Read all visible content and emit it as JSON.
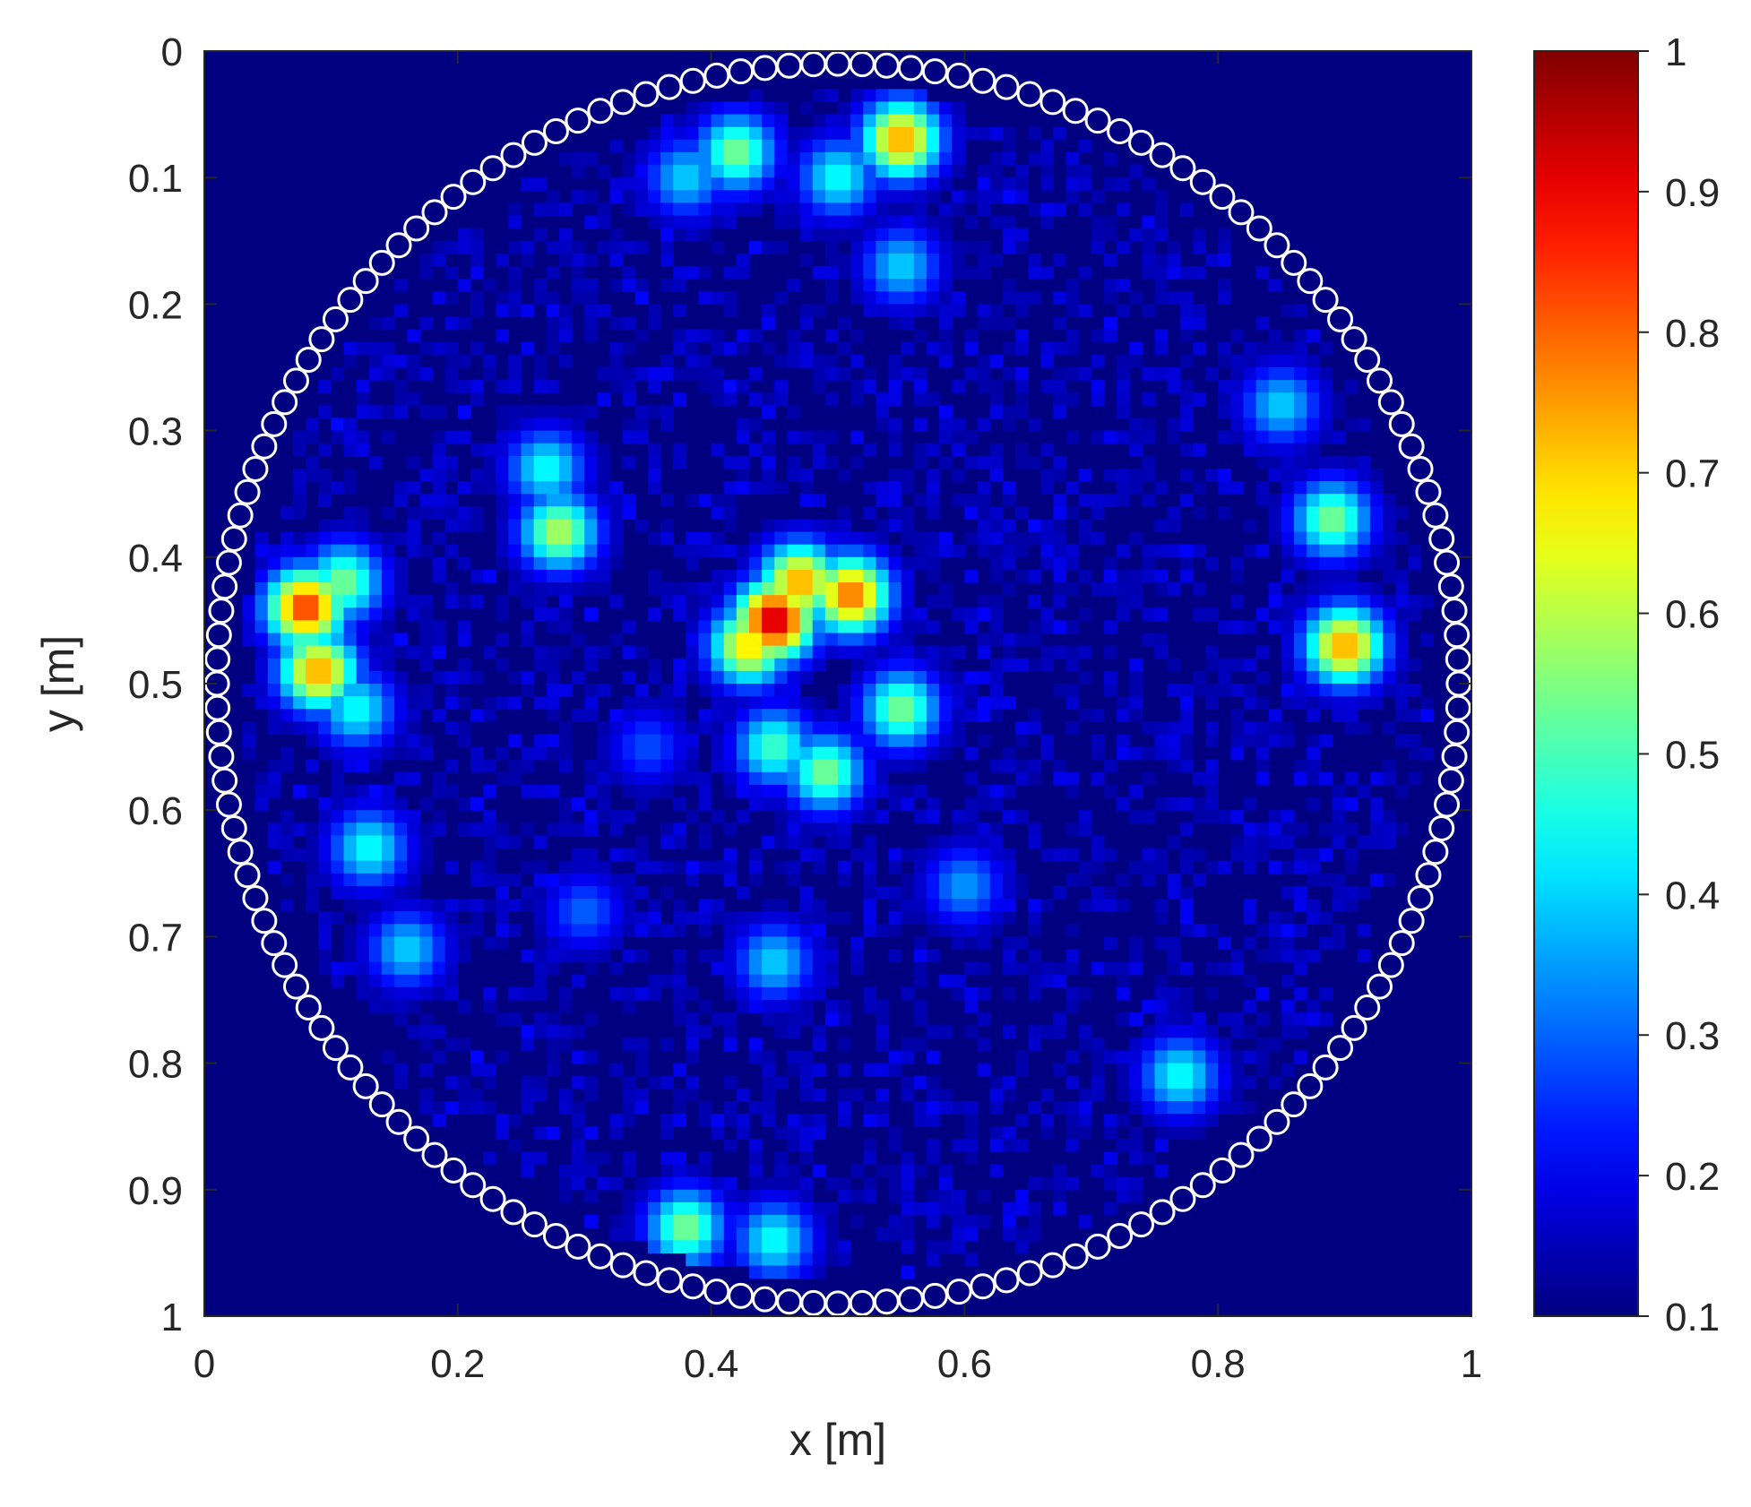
{
  "chart_data": {
    "type": "heatmap",
    "title": "",
    "xlabel": "x [m]",
    "ylabel": "y [m]",
    "xlim": [
      0,
      1
    ],
    "ylim": [
      0,
      1
    ],
    "y_direction": "reversed",
    "x_ticks": [
      "0",
      "0.2",
      "0.4",
      "0.6",
      "0.8",
      "1"
    ],
    "y_ticks": [
      "0",
      "0.1",
      "0.2",
      "0.3",
      "0.4",
      "0.5",
      "0.6",
      "0.7",
      "0.8",
      "0.9",
      "1"
    ],
    "colormap": "jet",
    "clim": [
      0.1,
      1
    ],
    "colorbar_ticks": [
      "0.1",
      "0.2",
      "0.3",
      "0.4",
      "0.5",
      "0.6",
      "0.7",
      "0.8",
      "0.9",
      "1"
    ],
    "colorbar_location": "right",
    "background_value": 0.1,
    "domain": {
      "shape": "circle",
      "center": [
        0.5,
        0.5
      ],
      "radius": 0.47
    },
    "boundary_markers": {
      "marker": "circle",
      "color": "#ffffff",
      "count": 160,
      "center": [
        0.5,
        0.5
      ],
      "radius": 0.49
    },
    "hotspots": [
      {
        "x": 0.08,
        "y": 0.44,
        "value": 0.85
      },
      {
        "x": 0.09,
        "y": 0.49,
        "value": 0.75
      },
      {
        "x": 0.11,
        "y": 0.42,
        "value": 0.55
      },
      {
        "x": 0.12,
        "y": 0.52,
        "value": 0.45
      },
      {
        "x": 0.28,
        "y": 0.38,
        "value": 0.6
      },
      {
        "x": 0.27,
        "y": 0.33,
        "value": 0.45
      },
      {
        "x": 0.45,
        "y": 0.45,
        "value": 0.95
      },
      {
        "x": 0.43,
        "y": 0.47,
        "value": 0.7
      },
      {
        "x": 0.47,
        "y": 0.42,
        "value": 0.75
      },
      {
        "x": 0.51,
        "y": 0.43,
        "value": 0.8
      },
      {
        "x": 0.55,
        "y": 0.52,
        "value": 0.55
      },
      {
        "x": 0.45,
        "y": 0.55,
        "value": 0.5
      },
      {
        "x": 0.49,
        "y": 0.57,
        "value": 0.55
      },
      {
        "x": 0.55,
        "y": 0.07,
        "value": 0.75
      },
      {
        "x": 0.42,
        "y": 0.08,
        "value": 0.55
      },
      {
        "x": 0.5,
        "y": 0.1,
        "value": 0.45
      },
      {
        "x": 0.38,
        "y": 0.1,
        "value": 0.4
      },
      {
        "x": 0.9,
        "y": 0.47,
        "value": 0.75
      },
      {
        "x": 0.89,
        "y": 0.37,
        "value": 0.55
      },
      {
        "x": 0.85,
        "y": 0.28,
        "value": 0.4
      },
      {
        "x": 0.13,
        "y": 0.63,
        "value": 0.45
      },
      {
        "x": 0.16,
        "y": 0.71,
        "value": 0.4
      },
      {
        "x": 0.45,
        "y": 0.72,
        "value": 0.4
      },
      {
        "x": 0.77,
        "y": 0.81,
        "value": 0.45
      },
      {
        "x": 0.38,
        "y": 0.93,
        "value": 0.55
      },
      {
        "x": 0.45,
        "y": 0.94,
        "value": 0.45
      },
      {
        "x": 0.55,
        "y": 0.17,
        "value": 0.4
      },
      {
        "x": 0.6,
        "y": 0.66,
        "value": 0.35
      },
      {
        "x": 0.3,
        "y": 0.68,
        "value": 0.3
      },
      {
        "x": 0.35,
        "y": 0.55,
        "value": 0.28
      }
    ]
  }
}
